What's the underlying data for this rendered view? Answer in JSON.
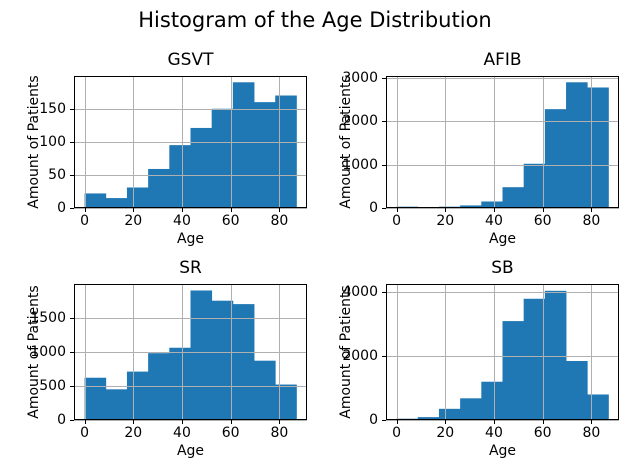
{
  "figure": {
    "title": "Histogram of the Age Distribution",
    "background": "#ffffff",
    "bar_color": "#1f77b4",
    "grid_color": "#b0b0b0",
    "spine_color": "#000000",
    "text_color": "#000000"
  },
  "chart_data": [
    {
      "type": "bar",
      "title": "GSVT",
      "xlabel": "Age",
      "ylabel": "Amount of Patients",
      "bin_edges": [
        0,
        8.7,
        17.4,
        26.1,
        34.8,
        43.5,
        52.2,
        60.9,
        69.6,
        78.3,
        87
      ],
      "values": [
        22,
        15,
        31,
        59,
        95,
        121,
        150,
        190,
        160,
        170
      ],
      "xticks": [
        0,
        20,
        40,
        60,
        80
      ],
      "yticks": [
        0,
        50,
        100,
        150
      ],
      "xlim": [
        -4.35,
        91.35
      ],
      "ylim": [
        0,
        199.5
      ],
      "grid": true,
      "legend": false
    },
    {
      "type": "bar",
      "title": "AFIB",
      "xlabel": "Age",
      "ylabel": "Amount of Patients",
      "bin_edges": [
        0,
        8.7,
        17.4,
        26.1,
        34.8,
        43.5,
        52.2,
        60.9,
        69.6,
        78.3,
        87
      ],
      "values": [
        30,
        10,
        30,
        60,
        150,
        480,
        1020,
        2280,
        2900,
        2780
      ],
      "xticks": [
        0,
        20,
        40,
        60,
        80
      ],
      "yticks": [
        0,
        1000,
        2000,
        3000
      ],
      "xlim": [
        -4.35,
        91.35
      ],
      "ylim": [
        0,
        3045
      ],
      "grid": true,
      "legend": false
    },
    {
      "type": "bar",
      "title": "SR",
      "xlabel": "Age",
      "ylabel": "Amount of Patients",
      "bin_edges": [
        0,
        8.7,
        17.4,
        26.1,
        34.8,
        43.5,
        52.2,
        60.9,
        69.6,
        78.3,
        87
      ],
      "values": [
        620,
        450,
        710,
        980,
        1060,
        1900,
        1750,
        1700,
        870,
        520
      ],
      "xticks": [
        0,
        20,
        40,
        60,
        80
      ],
      "yticks": [
        0,
        500,
        1000,
        1500
      ],
      "xlim": [
        -4.35,
        91.35
      ],
      "ylim": [
        0,
        1995
      ],
      "grid": true,
      "legend": false
    },
    {
      "type": "bar",
      "title": "SB",
      "xlabel": "Age",
      "ylabel": "Amount of Patients",
      "bin_edges": [
        0,
        8.7,
        17.4,
        26.1,
        34.8,
        43.5,
        52.2,
        60.9,
        69.6,
        78.3,
        87
      ],
      "values": [
        40,
        90,
        350,
        680,
        1200,
        3100,
        3800,
        4050,
        1850,
        800
      ],
      "xticks": [
        0,
        20,
        40,
        60,
        80
      ],
      "yticks": [
        0,
        2000,
        4000
      ],
      "xlim": [
        -4.35,
        91.35
      ],
      "ylim": [
        0,
        4263
      ],
      "grid": true,
      "legend": false
    }
  ]
}
